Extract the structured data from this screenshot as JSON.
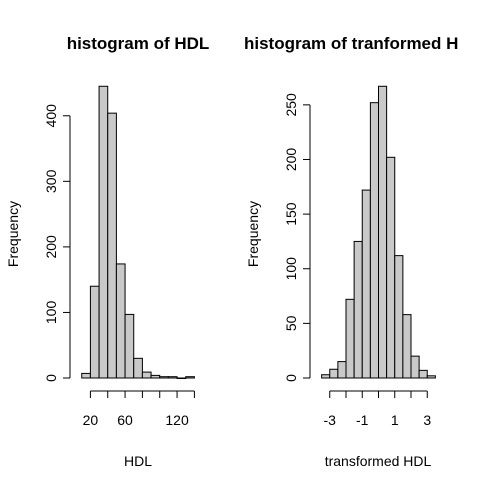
{
  "chart_data": [
    {
      "type": "bar",
      "title": "histogram of HDL",
      "xlabel": "HDL",
      "ylabel": "Frequency",
      "bin_edges": [
        10,
        20,
        30,
        40,
        50,
        60,
        70,
        80,
        90,
        100,
        110,
        120,
        130,
        140
      ],
      "values": [
        7,
        140,
        445,
        404,
        174,
        97,
        30,
        9,
        4,
        2,
        2,
        0,
        2
      ],
      "xlim": [
        8,
        143
      ],
      "ylim": [
        0,
        450
      ],
      "x_ticks": [
        20,
        60,
        120
      ],
      "x_tick_labels": [
        "20",
        "60",
        "120"
      ],
      "x_minor_ticks": [
        20,
        40,
        60,
        80,
        100,
        120,
        140
      ],
      "y_ticks": [
        0,
        100,
        200,
        300,
        400
      ],
      "y_tick_labels": [
        "0",
        "100",
        "200",
        "300",
        "400"
      ],
      "grid": false,
      "bar_color": "#c9c9c9"
    },
    {
      "type": "bar",
      "title": "histogram of tranformed H",
      "xlabel": "transformed HDL",
      "ylabel": "Frequency",
      "bin_edges": [
        -3.5,
        -3,
        -2.5,
        -2,
        -1.5,
        -1,
        -0.5,
        0,
        0.5,
        1,
        1.5,
        2,
        2.5,
        3,
        3.5
      ],
      "values": [
        3,
        8,
        15,
        72,
        125,
        172,
        252,
        267,
        202,
        112,
        58,
        20,
        7,
        2
      ],
      "xlim": [
        -3.6,
        3.6
      ],
      "ylim": [
        0,
        270
      ],
      "x_ticks": [
        -3,
        -2,
        -1,
        0,
        1,
        2,
        3
      ],
      "x_tick_labels": [
        "-3",
        "",
        "-1",
        "",
        "1",
        "",
        "3"
      ],
      "y_ticks": [
        0,
        50,
        100,
        150,
        200,
        250
      ],
      "y_tick_labels": [
        "0",
        "50",
        "100",
        "150",
        "200",
        "250"
      ],
      "grid": false,
      "bar_color": "#c9c9c9"
    }
  ]
}
